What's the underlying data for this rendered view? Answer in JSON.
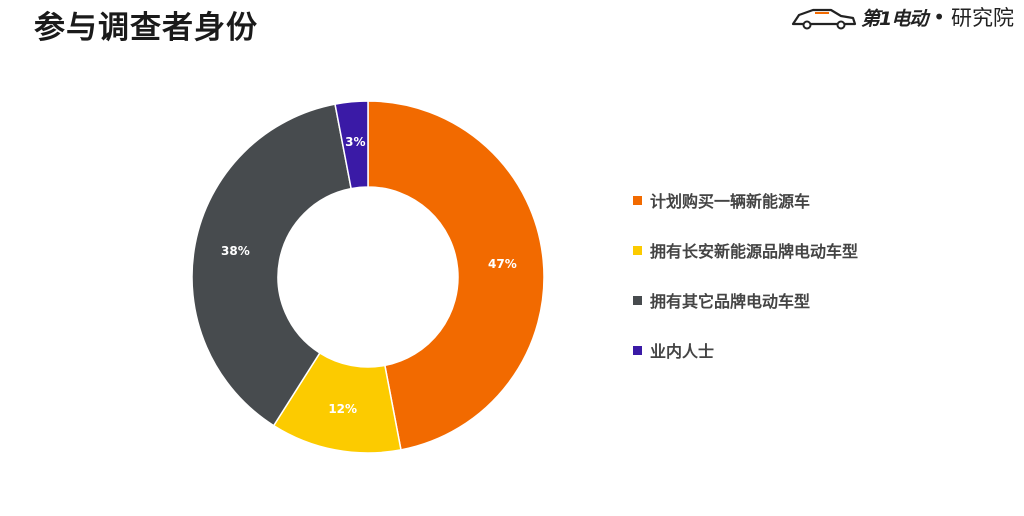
{
  "header": {
    "title": "参与调查者身份"
  },
  "brand": {
    "name": "第1电动",
    "separator": "•",
    "institute": "研究院"
  },
  "chart_data": {
    "type": "pie",
    "donut": true,
    "title": "参与调查者身份",
    "legend_position": "right",
    "categories": [
      "计划购买一辆新能源车",
      "拥有长安新能源品牌电动车型",
      "拥有其它品牌电动车型",
      "业内人士"
    ],
    "values": [
      47,
      12,
      38,
      3
    ],
    "labels": [
      "47%",
      "12%",
      "38%",
      "3%"
    ],
    "colors": [
      "#f26a00",
      "#fccb00",
      "#474b4e",
      "#3a1aa6"
    ],
    "start_angle_deg": 0,
    "direction": "clockwise"
  }
}
